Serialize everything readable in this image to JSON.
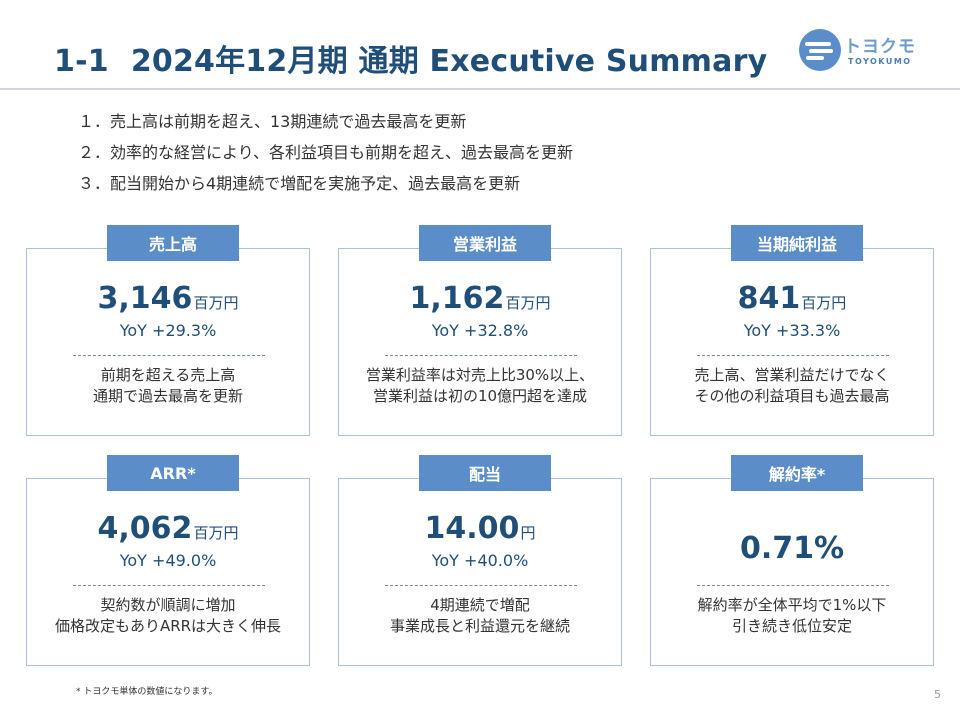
{
  "header": {
    "section_number": "1-1",
    "title": "2024年12月期 通期 Executive Summary"
  },
  "logo": {
    "text_jp": "トヨクモ",
    "text_en": "TOYOKUMO",
    "icon": "cloud-logo-icon",
    "color": "#5b8ec9"
  },
  "key_points": [
    {
      "num": "１．",
      "text": "売上高は前期を超え、13期連続で過去最高を更新"
    },
    {
      "num": "２．",
      "text": "効率的な経営により、各利益項目も前期を超え、過去最高を更新"
    },
    {
      "num": "３．",
      "text": "配当開始から4期連続で増配を実施予定、過去最高を更新"
    }
  ],
  "cards": [
    {
      "label": "売上高",
      "value": "3,146",
      "unit": "百万円",
      "yoy": "YoY +29.3%",
      "desc": [
        "前期を超える売上高",
        "通期で過去最高を更新"
      ]
    },
    {
      "label": "営業利益",
      "value": "1,162",
      "unit": "百万円",
      "yoy": "YoY +32.8%",
      "desc": [
        "営業利益率は対売上比30%以上、",
        "営業利益は初の10億円超を達成"
      ]
    },
    {
      "label": "当期純利益",
      "value": "841",
      "unit": "百万円",
      "yoy": "YoY +33.3%",
      "desc": [
        "売上高、営業利益だけでなく",
        "その他の利益項目も過去最高"
      ]
    },
    {
      "label": "ARR*",
      "value": "4,062",
      "unit": "百万円",
      "yoy": "YoY +49.0%",
      "desc": [
        "契約数が順調に増加",
        "価格改定もありARRは大きく伸長"
      ]
    },
    {
      "label": "配当",
      "value": "14.00",
      "unit": "円",
      "yoy": "YoY +40.0%",
      "desc": [
        "4期連続で増配",
        "事業成長と利益還元を継続"
      ]
    },
    {
      "label": "解約率*",
      "value": "0.71%",
      "unit": "",
      "yoy": "",
      "desc": [
        "解約率が全体平均で1%以下",
        "引き続き低位安定"
      ]
    }
  ],
  "footnote": "* トヨクモ単体の数値になります。",
  "page_number": "5",
  "colors": {
    "title": "#1f4e79",
    "label_bg": "#5b8ec9",
    "card_border": "#a9c4e0"
  }
}
